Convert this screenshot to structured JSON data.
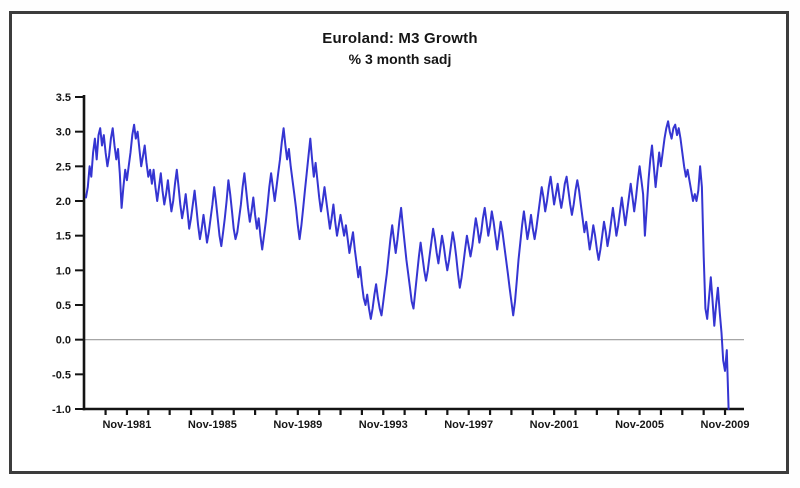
{
  "chart_data": {
    "type": "line",
    "title": "Euroland: M3 Growth",
    "subtitle": "% 3 month sadj",
    "xlabel": "",
    "ylabel": "",
    "ylim": [
      -1.0,
      3.5
    ],
    "y_tick_step": 0.5,
    "y_tick_labels": [
      "3.5",
      "3.0",
      "2.5",
      "2.0",
      "1.5",
      "1.0",
      "0.5",
      "0.0",
      "-0.5",
      "-1.0"
    ],
    "x_tick_labels": [
      "Nov-1981",
      "Nov-1985",
      "Nov-1989",
      "Nov-1993",
      "Nov-1997",
      "Nov-2001",
      "Nov-2005",
      "Nov-2009"
    ],
    "x_labeled_years": [
      1981,
      1985,
      1989,
      1993,
      1997,
      2001,
      2005,
      2009
    ],
    "x_minor_first_year": 1980,
    "x_minor_last_year": 2009,
    "x_tick_month": "Nov",
    "grid": "horizontal zero line only",
    "legend": "none",
    "colors": {
      "line": "#2a2ad0",
      "axis": "#141414",
      "zero_line": "#9a9a9a",
      "frame_border": "#3c3c3c",
      "background": "#ffffff"
    },
    "series": [
      {
        "name": "M3 growth, % 3 month sadj",
        "start": "1979-12",
        "frequency": "monthly",
        "values": [
          2.05,
          2.2,
          2.5,
          2.35,
          2.7,
          2.9,
          2.6,
          2.95,
          3.05,
          2.8,
          2.95,
          2.7,
          2.5,
          2.65,
          2.9,
          3.05,
          2.8,
          2.6,
          2.75,
          2.4,
          1.9,
          2.2,
          2.45,
          2.3,
          2.5,
          2.7,
          2.95,
          3.1,
          2.9,
          3.0,
          2.75,
          2.5,
          2.65,
          2.8,
          2.55,
          2.35,
          2.45,
          2.25,
          2.45,
          2.2,
          2.0,
          2.2,
          2.4,
          2.15,
          1.95,
          2.1,
          2.3,
          2.05,
          1.85,
          2.0,
          2.25,
          2.45,
          2.2,
          1.95,
          1.75,
          1.9,
          2.1,
          1.85,
          1.6,
          1.75,
          1.95,
          2.15,
          1.9,
          1.65,
          1.45,
          1.6,
          1.8,
          1.6,
          1.4,
          1.55,
          1.75,
          1.95,
          2.2,
          2.0,
          1.75,
          1.5,
          1.35,
          1.55,
          1.75,
          2.0,
          2.3,
          2.1,
          1.85,
          1.6,
          1.45,
          1.55,
          1.75,
          1.95,
          2.2,
          2.4,
          2.15,
          1.9,
          1.7,
          1.85,
          2.05,
          1.8,
          1.6,
          1.75,
          1.5,
          1.3,
          1.5,
          1.7,
          1.95,
          2.2,
          2.4,
          2.2,
          2.0,
          2.2,
          2.4,
          2.6,
          2.85,
          3.05,
          2.8,
          2.6,
          2.75,
          2.5,
          2.3,
          2.1,
          1.9,
          1.65,
          1.45,
          1.65,
          1.9,
          2.15,
          2.4,
          2.65,
          2.9,
          2.6,
          2.35,
          2.55,
          2.3,
          2.05,
          1.85,
          2.0,
          2.2,
          2.0,
          1.8,
          1.6,
          1.75,
          1.95,
          1.7,
          1.5,
          1.65,
          1.8,
          1.65,
          1.5,
          1.65,
          1.45,
          1.25,
          1.4,
          1.55,
          1.3,
          1.1,
          0.9,
          1.05,
          0.8,
          0.6,
          0.5,
          0.65,
          0.45,
          0.3,
          0.45,
          0.65,
          0.8,
          0.6,
          0.45,
          0.35,
          0.55,
          0.75,
          0.95,
          1.2,
          1.45,
          1.65,
          1.45,
          1.25,
          1.45,
          1.7,
          1.9,
          1.65,
          1.4,
          1.15,
          0.95,
          0.75,
          0.55,
          0.45,
          0.7,
          0.95,
          1.2,
          1.4,
          1.2,
          1.0,
          0.85,
          1.0,
          1.2,
          1.4,
          1.6,
          1.45,
          1.25,
          1.1,
          1.3,
          1.5,
          1.35,
          1.15,
          1.0,
          1.15,
          1.35,
          1.55,
          1.4,
          1.2,
          0.95,
          0.75,
          0.9,
          1.1,
          1.3,
          1.5,
          1.35,
          1.2,
          1.35,
          1.55,
          1.75,
          1.6,
          1.4,
          1.55,
          1.75,
          1.9,
          1.7,
          1.5,
          1.65,
          1.85,
          1.7,
          1.5,
          1.3,
          1.5,
          1.7,
          1.55,
          1.35,
          1.15,
          0.95,
          0.75,
          0.55,
          0.35,
          0.55,
          0.85,
          1.15,
          1.4,
          1.65,
          1.85,
          1.65,
          1.45,
          1.6,
          1.8,
          1.6,
          1.45,
          1.6,
          1.8,
          2.0,
          2.2,
          2.05,
          1.85,
          2.0,
          2.2,
          2.35,
          2.15,
          1.95,
          2.1,
          2.25,
          2.05,
          1.9,
          2.05,
          2.25,
          2.35,
          2.15,
          1.95,
          1.8,
          1.95,
          2.15,
          2.3,
          2.15,
          1.95,
          1.75,
          1.55,
          1.7,
          1.5,
          1.3,
          1.45,
          1.65,
          1.5,
          1.3,
          1.15,
          1.3,
          1.5,
          1.7,
          1.55,
          1.35,
          1.5,
          1.7,
          1.9,
          1.7,
          1.5,
          1.65,
          1.85,
          2.05,
          1.85,
          1.65,
          1.85,
          2.05,
          2.25,
          2.05,
          1.85,
          2.05,
          2.3,
          2.5,
          2.3,
          2.1,
          1.5,
          1.9,
          2.3,
          2.6,
          2.8,
          2.5,
          2.2,
          2.45,
          2.7,
          2.5,
          2.7,
          2.9,
          3.05,
          3.15,
          3.0,
          2.9,
          3.05,
          3.1,
          2.95,
          3.05,
          2.9,
          2.7,
          2.5,
          2.35,
          2.45,
          2.3,
          2.15,
          2.0,
          2.1,
          2.0,
          2.15,
          2.5,
          2.2,
          1.2,
          0.45,
          0.3,
          0.6,
          0.9,
          0.55,
          0.2,
          0.5,
          0.75,
          0.4,
          0.1,
          -0.3,
          -0.45,
          -0.15,
          -1.0
        ]
      }
    ]
  }
}
